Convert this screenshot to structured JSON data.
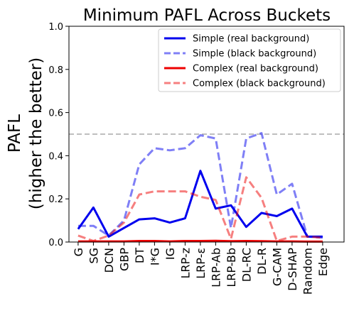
{
  "chart_data": {
    "type": "line",
    "title": "Minimum PAFL Across Buckets",
    "ylabel_line1": "PAFL",
    "ylabel_line2": "(higher the better)",
    "ylim": [
      0,
      1.0
    ],
    "yticks": [
      "0.0",
      "0.2",
      "0.4",
      "0.6",
      "0.8",
      "1.0"
    ],
    "ytick_values": [
      0,
      0.2,
      0.4,
      0.6,
      0.8,
      1.0
    ],
    "reference_line": 0.5,
    "legend_position": "top-right",
    "categories": [
      "G",
      "SG",
      "DCN",
      "GBP",
      "DT",
      "I*G",
      "IG",
      "LRP-z",
      "LRP-ε",
      "LRP-Ab",
      "LRP-Bb",
      "DL-RC",
      "DL-R",
      "G-CAM",
      "D-SHAP",
      "Random",
      "Edge"
    ],
    "series": [
      {
        "name": "Simple (real background)",
        "color": "#0000ee",
        "opacity": 1,
        "dashed": false,
        "values": [
          0.06,
          0.16,
          0.025,
          0.065,
          0.105,
          0.11,
          0.09,
          0.11,
          0.33,
          0.155,
          0.17,
          0.07,
          0.135,
          0.12,
          0.155,
          0.025,
          0.025
        ]
      },
      {
        "name": "Simple (black background)",
        "color": "#0000ee",
        "opacity": 0.5,
        "dashed": true,
        "values": [
          0.075,
          0.075,
          0.03,
          0.1,
          0.36,
          0.435,
          0.425,
          0.435,
          0.495,
          0.48,
          0.065,
          0.48,
          0.505,
          0.22,
          0.27,
          0.025,
          0.02
        ]
      },
      {
        "name": "Complex (real background)",
        "color": "#ee0000",
        "opacity": 1,
        "dashed": false,
        "values": [
          0.003,
          0.003,
          0.003,
          0.003,
          0.005,
          0.005,
          0.003,
          0.005,
          0.005,
          0.006,
          0.004,
          0.005,
          0.004,
          0.003,
          0.003,
          0.002,
          0.002
        ]
      },
      {
        "name": "Complex (black background)",
        "color": "#ee0000",
        "opacity": 0.5,
        "dashed": true,
        "values": [
          0.03,
          0.005,
          0.03,
          0.09,
          0.22,
          0.235,
          0.235,
          0.235,
          0.21,
          0.195,
          0.015,
          0.3,
          0.205,
          0.005,
          0.025,
          0.025,
          0.02
        ]
      }
    ]
  }
}
